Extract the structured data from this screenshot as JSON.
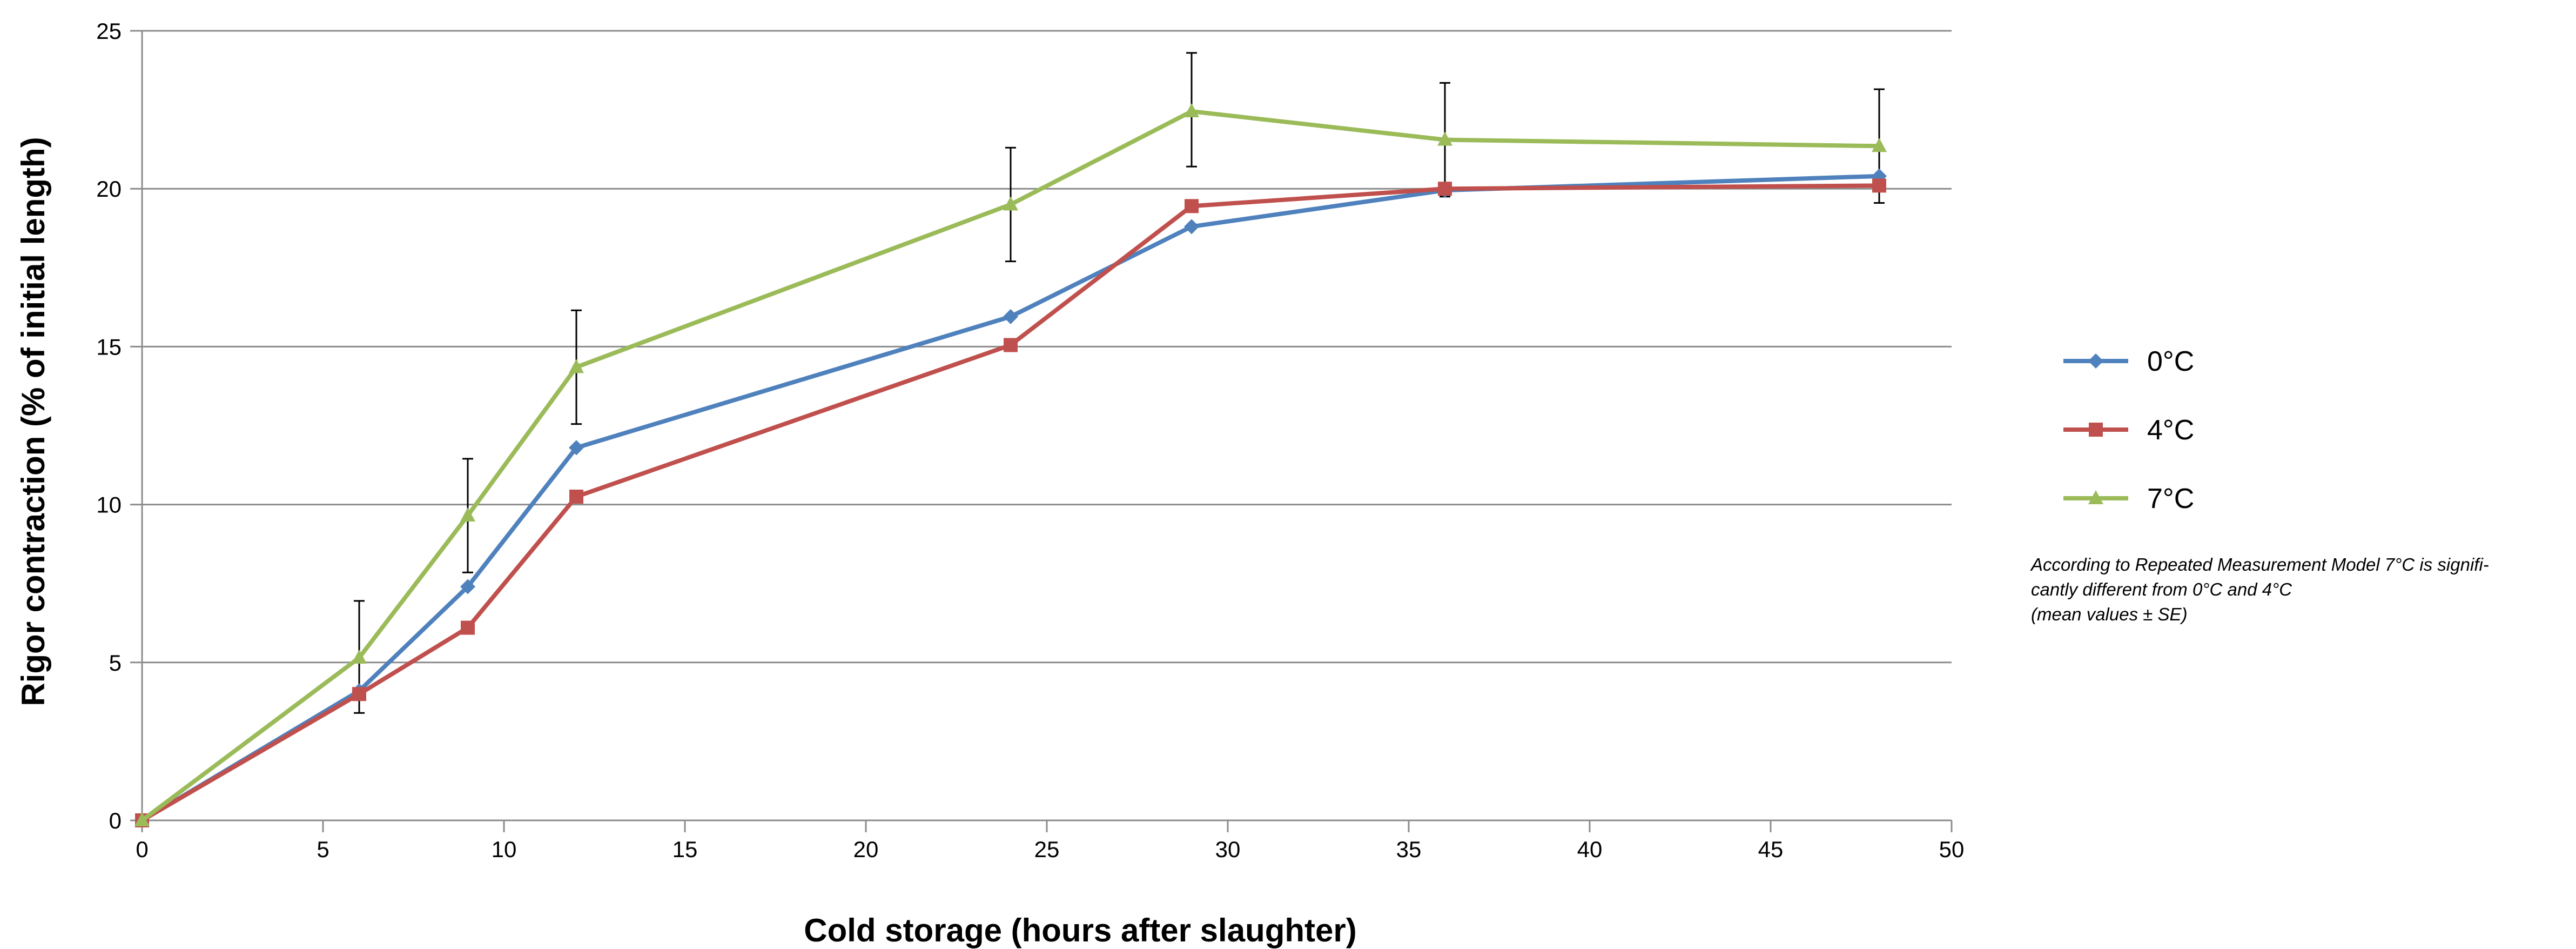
{
  "chart_data": {
    "type": "line",
    "xlabel": "Cold storage (hours after slaughter)",
    "ylabel": "Rigor contraction (% of initial length)",
    "xlim": [
      0,
      50
    ],
    "ylim": [
      0,
      25
    ],
    "x_ticks": [
      0,
      5,
      10,
      15,
      20,
      25,
      30,
      35,
      40,
      45,
      50
    ],
    "y_ticks": [
      0,
      5,
      10,
      15,
      20,
      25
    ],
    "grid": "horizontal",
    "legend_position": "right",
    "x": [
      0,
      6,
      9,
      12,
      24,
      29,
      36,
      48
    ],
    "series": [
      {
        "name": "0°C",
        "color": "#4f81bd",
        "marker": "diamond",
        "values": [
          0,
          4.1,
          7.4,
          11.8,
          15.95,
          18.8,
          19.95,
          20.4
        ]
      },
      {
        "name": "4°C",
        "color": "#c0504d",
        "marker": "square",
        "values": [
          0,
          4.0,
          6.1,
          10.25,
          15.05,
          19.45,
          20.0,
          20.1
        ]
      },
      {
        "name": "7°C",
        "color": "#9bbb59",
        "marker": "triangle",
        "values": [
          0,
          5.15,
          9.65,
          14.35,
          19.5,
          22.45,
          21.55,
          21.35
        ]
      }
    ],
    "error_bars": [
      {
        "x": 6,
        "low": 3.4,
        "high": 6.95
      },
      {
        "x": 9,
        "low": 7.85,
        "high": 11.45
      },
      {
        "x": 12,
        "low": 12.55,
        "high": 16.15
      },
      {
        "x": 24,
        "low": 17.7,
        "high": 21.3
      },
      {
        "x": 29,
        "low": 20.7,
        "high": 24.3
      },
      {
        "x": 36,
        "low": 19.75,
        "high": 23.35
      },
      {
        "x": 48,
        "low": 19.55,
        "high": 23.15
      }
    ],
    "annotation": [
      "According to Repeated Measurement Model 7°C is signifi-",
      "cantly different from 0°C and 4°C",
      "(mean values ± SE)"
    ]
  }
}
